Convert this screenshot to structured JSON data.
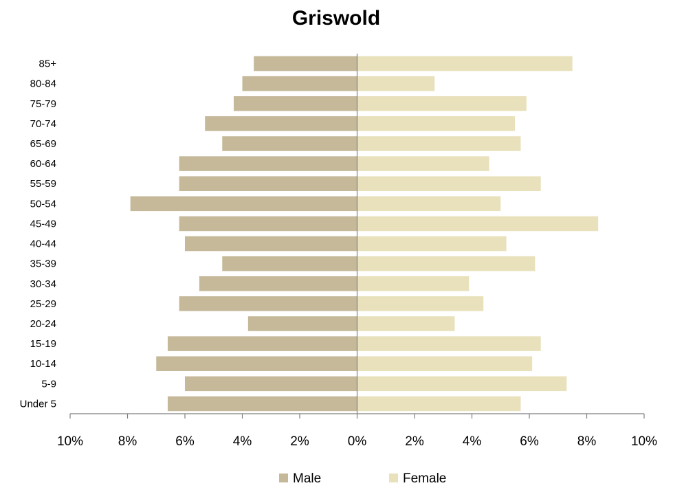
{
  "chart_data": {
    "type": "bar",
    "orientation": "horizontal",
    "title": "Griswold",
    "categories": [
      "Under 5",
      "5-9",
      "10-14",
      "15-19",
      "20-24",
      "25-29",
      "30-34",
      "35-39",
      "40-44",
      "45-49",
      "50-54",
      "55-59",
      "60-64",
      "65-69",
      "70-74",
      "75-79",
      "80-84",
      "85+"
    ],
    "series": [
      {
        "name": "Male",
        "color": "#c5b99a",
        "values": [
          6.6,
          6.0,
          7.0,
          6.6,
          3.8,
          6.2,
          5.5,
          4.7,
          6.0,
          6.2,
          7.9,
          6.2,
          6.2,
          4.7,
          5.3,
          4.3,
          4.0,
          3.6
        ]
      },
      {
        "name": "Female",
        "color": "#e8e1bb",
        "values": [
          5.7,
          7.3,
          6.1,
          6.4,
          3.4,
          4.4,
          3.9,
          6.2,
          5.2,
          8.4,
          5.0,
          6.4,
          4.6,
          5.7,
          5.5,
          5.9,
          2.7,
          7.5
        ]
      }
    ],
    "x_ticks": [
      "10%",
      "8%",
      "6%",
      "4%",
      "2%",
      "0%",
      "2%",
      "4%",
      "6%",
      "8%",
      "10%"
    ],
    "xlim": [
      -10,
      10
    ],
    "unit": "%",
    "grid": false,
    "legend_position": "bottom"
  }
}
